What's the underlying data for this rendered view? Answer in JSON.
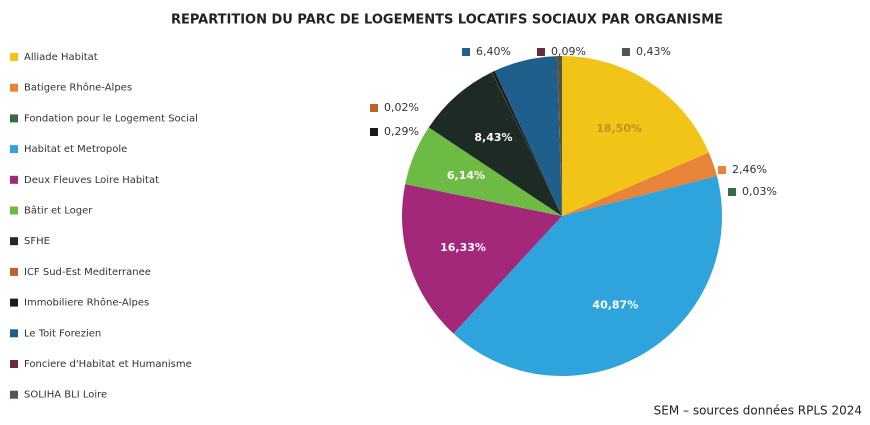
{
  "chart_data": {
    "type": "pie",
    "title": "REPARTITION DU PARC DE LOGEMENTS LOCATIFS SOCIAUX PAR ORGANISME",
    "categories": [
      "Alliade Habitat",
      "Batigere Rhône-Alpes",
      "Fondation pour le Logement Social",
      "Habitat et Metropole",
      "Deux Fleuves Loire Habitat",
      "Bâtir et Loger",
      "SFHE",
      "ICF Sud-Est Mediterranee",
      "Immobiliere Rhône-Alpes",
      "Le Toit Forezien",
      "Fonciere d'Habitat et Humanisme",
      "SOLIHA BLI Loire"
    ],
    "values": [
      18.5,
      2.46,
      0.03,
      40.87,
      16.33,
      6.14,
      8.43,
      0.02,
      0.29,
      6.4,
      0.09,
      0.43
    ],
    "value_labels": [
      "18,50%",
      "2,46%",
      "0,03%",
      "40,87%",
      "16,33%",
      "6,14%",
      "8,43%",
      "0,02%",
      "0,29%",
      "6,40%",
      "0,09%",
      "0,43%"
    ],
    "colors": [
      "#f2c418",
      "#e8833a",
      "#3a6b45",
      "#2ea3dc",
      "#a3287a",
      "#6dbb45",
      "#1e2a24",
      "#c0622a",
      "#1a1a1a",
      "#1f5f8b",
      "#6a2b3a",
      "#4a5a48"
    ],
    "legend": "left",
    "source": "SEM – sources données RPLS 2024"
  }
}
